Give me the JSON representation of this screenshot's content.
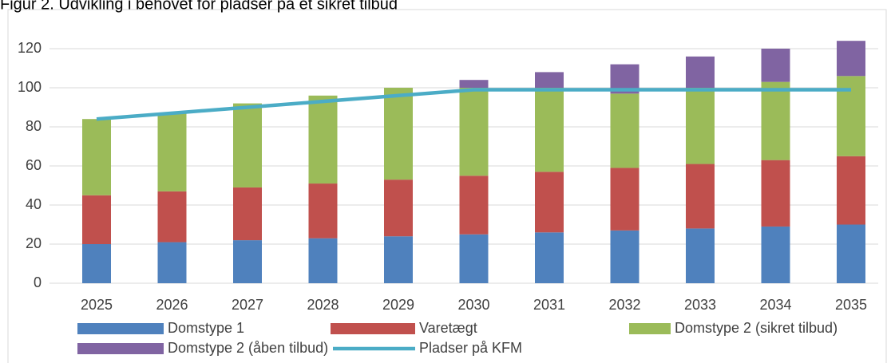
{
  "chart_data": {
    "type": "bar",
    "stacked": true,
    "title": "Figur 2. Udvikling i behovet for pladser på et sikret tilbud",
    "categories": [
      "2025",
      "2026",
      "2027",
      "2028",
      "2029",
      "2030",
      "2031",
      "2032",
      "2033",
      "2034",
      "2035"
    ],
    "series": [
      {
        "name": "Domstype 1",
        "color": "#4f81bd",
        "values": [
          20,
          21,
          22,
          23,
          24,
          25,
          26,
          27,
          28,
          29,
          30
        ]
      },
      {
        "name": "Varetægt",
        "color": "#c0504d",
        "values": [
          25,
          26,
          27,
          28,
          29,
          30,
          31,
          32,
          33,
          34,
          35
        ]
      },
      {
        "name": "Domstype 2 (sikret tilbud)",
        "color": "#9bbb59",
        "values": [
          39,
          40,
          43,
          45,
          47,
          45,
          43,
          38,
          39,
          40,
          41
        ]
      },
      {
        "name": "Domstype 2 (åben tilbud)",
        "color": "#8064a2",
        "values": [
          0,
          0,
          0,
          0,
          0,
          4,
          8,
          15,
          16,
          17,
          18
        ]
      },
      {
        "name": "Pladser på KFM",
        "color": "#4bacc6",
        "type": "line",
        "values": [
          84,
          87,
          90,
          93,
          96,
          99,
          99,
          99,
          99,
          99,
          99
        ]
      }
    ],
    "ylim": [
      0,
      130
    ],
    "yticks": [
      0,
      20,
      40,
      60,
      80,
      100,
      120
    ],
    "grid": true,
    "legend": "bottom"
  }
}
